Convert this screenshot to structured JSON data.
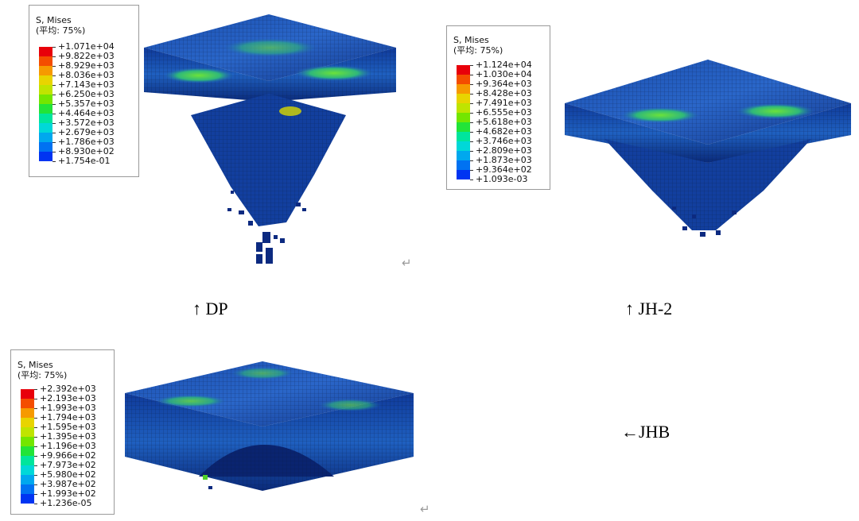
{
  "legends": [
    {
      "title": "S, Mises",
      "subtitle": "(平均: 75%)",
      "values": [
        "+1.071e+04",
        "+9.822e+03",
        "+8.929e+03",
        "+8.036e+03",
        "+7.143e+03",
        "+6.250e+03",
        "+5.357e+03",
        "+4.464e+03",
        "+3.572e+03",
        "+2.679e+03",
        "+1.786e+03",
        "+8.930e+02",
        "+1.754e-01"
      ]
    },
    {
      "title": "S, Mises",
      "subtitle": "(平均: 75%)",
      "values": [
        "+1.124e+04",
        "+1.030e+04",
        "+9.364e+03",
        "+8.428e+03",
        "+7.491e+03",
        "+6.555e+03",
        "+5.618e+03",
        "+4.682e+03",
        "+3.746e+03",
        "+2.809e+03",
        "+1.873e+03",
        "+9.364e+02",
        "+1.093e-03"
      ]
    },
    {
      "title": "S, Mises",
      "subtitle": "(平均: 75%)",
      "values": [
        "+2.392e+03",
        "+2.193e+03",
        "+1.993e+03",
        "+1.794e+03",
        "+1.595e+03",
        "+1.395e+03",
        "+1.196e+03",
        "+9.966e+02",
        "+7.973e+02",
        "+5.980e+02",
        "+3.987e+02",
        "+1.993e+02",
        "+1.236e-05"
      ]
    }
  ],
  "colormap": [
    "#e8000a",
    "#f44d00",
    "#f69a00",
    "#e8d400",
    "#bfe400",
    "#73e600",
    "#22e438",
    "#00e59c",
    "#00d8d8",
    "#00a8ee",
    "#0072f2",
    "#0034f2"
  ],
  "captions": {
    "dp": "↑ DP",
    "jh2": "↑ JH-2",
    "jhb": "←JHB"
  },
  "return_mark": "↵"
}
